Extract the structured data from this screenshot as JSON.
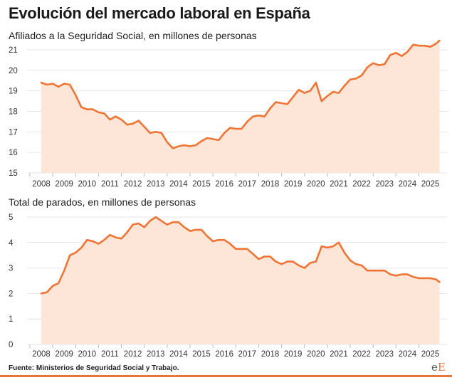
{
  "title": "Evolución del mercado laboral en España",
  "source": "Fuente: Ministerios de Seguridad Social y Trabajo.",
  "logo": {
    "text": "eE"
  },
  "colors": {
    "line": "#f07433",
    "fill": "#fde6d8",
    "grid": "#e6e6e6",
    "accent": "#e8763a"
  },
  "chart_data": [
    {
      "type": "area",
      "title": "Afiliados a la Seguridad Social, en millones de personas",
      "xlabel": "",
      "ylabel": "",
      "ylim": [
        15,
        21
      ],
      "yticks": [
        "15",
        "16",
        "17",
        "18",
        "19",
        "20",
        "21"
      ],
      "xticks": [
        "2008",
        "2009",
        "2010",
        "2011",
        "2012",
        "2013",
        "2014",
        "2015",
        "2016",
        "2017",
        "2018",
        "2019",
        "2020",
        "2021",
        "2022",
        "2023",
        "2024",
        "2025"
      ],
      "grid": true,
      "x": [
        2008.0,
        2008.25,
        2008.5,
        2008.75,
        2009.0,
        2009.25,
        2009.5,
        2009.75,
        2010.0,
        2010.25,
        2010.5,
        2010.75,
        2011.0,
        2011.25,
        2011.5,
        2011.75,
        2012.0,
        2012.25,
        2012.5,
        2012.75,
        2013.0,
        2013.25,
        2013.5,
        2013.75,
        2014.0,
        2014.25,
        2014.5,
        2014.75,
        2015.0,
        2015.25,
        2015.5,
        2015.75,
        2016.0,
        2016.25,
        2016.5,
        2016.75,
        2017.0,
        2017.25,
        2017.5,
        2017.75,
        2018.0,
        2018.25,
        2018.5,
        2018.75,
        2019.0,
        2019.25,
        2019.5,
        2019.75,
        2020.0,
        2020.25,
        2020.5,
        2020.75,
        2021.0,
        2021.25,
        2021.5,
        2021.75,
        2022.0,
        2022.25,
        2022.5,
        2022.75,
        2023.0,
        2023.25,
        2023.5,
        2023.75,
        2024.0,
        2024.25,
        2024.5,
        2024.75,
        2025.0,
        2025.25,
        2025.4
      ],
      "values": [
        19.4,
        19.3,
        19.35,
        19.2,
        19.35,
        19.3,
        18.8,
        18.2,
        18.1,
        18.1,
        17.95,
        17.9,
        17.6,
        17.75,
        17.6,
        17.35,
        17.4,
        17.55,
        17.25,
        16.95,
        17.0,
        16.95,
        16.5,
        16.2,
        16.3,
        16.35,
        16.3,
        16.35,
        16.55,
        16.7,
        16.65,
        16.6,
        16.95,
        17.2,
        17.15,
        17.15,
        17.5,
        17.75,
        17.8,
        17.75,
        18.15,
        18.45,
        18.4,
        18.35,
        18.7,
        19.05,
        18.9,
        19.0,
        19.4,
        18.5,
        18.75,
        18.95,
        18.9,
        19.25,
        19.55,
        19.6,
        19.75,
        20.15,
        20.35,
        20.25,
        20.3,
        20.75,
        20.85,
        20.7,
        20.9,
        21.25,
        21.2,
        21.2,
        21.15,
        21.3,
        21.45
      ]
    },
    {
      "type": "area",
      "title": "Total de parados, en millones de personas",
      "xlabel": "",
      "ylabel": "",
      "ylim": [
        0,
        5
      ],
      "yticks": [
        "0",
        "1",
        "2",
        "3",
        "4",
        "5"
      ],
      "xticks": [
        "2008",
        "2009",
        "2010",
        "2011",
        "2012",
        "2013",
        "2014",
        "2015",
        "2016",
        "2017",
        "2018",
        "2019",
        "2020",
        "2021",
        "2022",
        "2023",
        "2024",
        "2025"
      ],
      "grid": true,
      "x": [
        2008.0,
        2008.25,
        2008.5,
        2008.75,
        2009.0,
        2009.25,
        2009.5,
        2009.75,
        2010.0,
        2010.25,
        2010.5,
        2010.75,
        2011.0,
        2011.25,
        2011.5,
        2011.75,
        2012.0,
        2012.25,
        2012.5,
        2012.75,
        2013.0,
        2013.25,
        2013.5,
        2013.75,
        2014.0,
        2014.25,
        2014.5,
        2014.75,
        2015.0,
        2015.25,
        2015.5,
        2015.75,
        2016.0,
        2016.25,
        2016.5,
        2016.75,
        2017.0,
        2017.25,
        2017.5,
        2017.75,
        2018.0,
        2018.25,
        2018.5,
        2018.75,
        2019.0,
        2019.25,
        2019.5,
        2019.75,
        2020.0,
        2020.25,
        2020.5,
        2020.75,
        2021.0,
        2021.25,
        2021.5,
        2021.75,
        2022.0,
        2022.25,
        2022.5,
        2022.75,
        2023.0,
        2023.25,
        2023.5,
        2023.75,
        2024.0,
        2024.25,
        2024.5,
        2024.75,
        2025.0,
        2025.25,
        2025.4
      ],
      "values": [
        2.0,
        2.05,
        2.3,
        2.4,
        2.9,
        3.5,
        3.6,
        3.8,
        4.1,
        4.05,
        3.95,
        4.1,
        4.3,
        4.2,
        4.15,
        4.4,
        4.7,
        4.75,
        4.6,
        4.85,
        5.0,
        4.85,
        4.7,
        4.8,
        4.8,
        4.6,
        4.45,
        4.5,
        4.5,
        4.25,
        4.05,
        4.1,
        4.1,
        3.95,
        3.75,
        3.75,
        3.75,
        3.55,
        3.35,
        3.45,
        3.45,
        3.25,
        3.15,
        3.25,
        3.25,
        3.1,
        3.0,
        3.2,
        3.25,
        3.85,
        3.8,
        3.85,
        4.0,
        3.6,
        3.3,
        3.15,
        3.1,
        2.9,
        2.9,
        2.9,
        2.9,
        2.75,
        2.7,
        2.75,
        2.75,
        2.65,
        2.6,
        2.6,
        2.6,
        2.55,
        2.45
      ]
    }
  ]
}
